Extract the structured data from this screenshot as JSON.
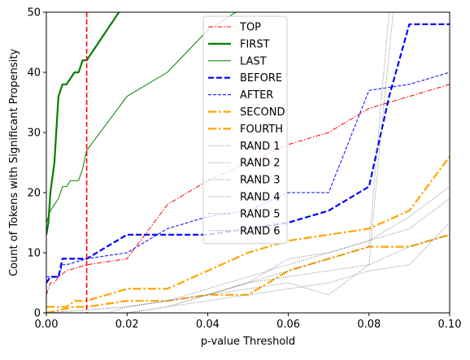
{
  "chart_data": {
    "type": "line",
    "xlabel": "p-value Threshold",
    "ylabel": "Count of Tokens with Significant Propensity",
    "xlim": [
      0.0,
      0.1
    ],
    "ylim": [
      0,
      50
    ],
    "xticks": [
      0.0,
      0.02,
      0.04,
      0.06,
      0.08,
      0.1
    ],
    "xtick_labels": [
      "0.00",
      "0.02",
      "0.04",
      "0.06",
      "0.08",
      "0.10"
    ],
    "yticks": [
      0,
      10,
      20,
      30,
      40,
      50
    ],
    "ytick_labels": [
      "0",
      "10",
      "20",
      "30",
      "40",
      "50"
    ],
    "grid": false,
    "legend_position": "top-center",
    "reference_line": {
      "orientation": "vertical",
      "x": 0.01,
      "color": "#ff0000",
      "style": "dashed"
    },
    "series": [
      {
        "name": "TOP",
        "color": "#ff0000",
        "style": "dashdot-thin",
        "x": [
          0.0,
          0.001,
          0.002,
          0.003,
          0.005,
          0.01,
          0.02,
          0.03,
          0.04,
          0.05,
          0.06,
          0.07,
          0.08,
          0.09,
          0.1
        ],
        "y": [
          3,
          5,
          5,
          6,
          7,
          8,
          9,
          18,
          22,
          25,
          28,
          30,
          34,
          36,
          38
        ]
      },
      {
        "name": "FIRST",
        "color": "#008000",
        "style": "solid-thick",
        "x": [
          0.0,
          0.0005,
          0.001,
          0.002,
          0.003,
          0.004,
          0.005,
          0.006,
          0.007,
          0.008,
          0.009,
          0.01,
          0.015,
          0.018
        ],
        "y": [
          13,
          15,
          20,
          25,
          36,
          38,
          38,
          39,
          40,
          40,
          42,
          42,
          47,
          50
        ]
      },
      {
        "name": "LAST",
        "color": "#008000",
        "style": "solid-thin",
        "x": [
          0.0,
          0.001,
          0.002,
          0.003,
          0.004,
          0.005,
          0.006,
          0.007,
          0.008,
          0.009,
          0.01,
          0.02,
          0.03,
          0.04,
          0.047
        ],
        "y": [
          15,
          17,
          18,
          19,
          21,
          21,
          22,
          22,
          22,
          24,
          27,
          36,
          40,
          47,
          50
        ]
      },
      {
        "name": "BEFORE",
        "color": "#0000ff",
        "style": "dashed-thick",
        "x": [
          0.0,
          0.001,
          0.002,
          0.003,
          0.004,
          0.005,
          0.009,
          0.01,
          0.02,
          0.03,
          0.04,
          0.05,
          0.06,
          0.07,
          0.08,
          0.085,
          0.09,
          0.1
        ],
        "y": [
          5,
          6,
          6,
          6,
          9,
          9,
          9,
          9,
          13,
          13,
          13,
          14,
          15,
          17,
          21,
          36,
          48,
          48
        ]
      },
      {
        "name": "AFTER",
        "color": "#0000ff",
        "style": "dashed-thin",
        "x": [
          0.0,
          0.001,
          0.002,
          0.003,
          0.004,
          0.005,
          0.01,
          0.02,
          0.03,
          0.04,
          0.05,
          0.06,
          0.07,
          0.08,
          0.09,
          0.1
        ],
        "y": [
          6,
          6,
          6,
          6,
          8,
          8,
          9,
          10,
          14,
          16,
          17,
          20,
          20,
          37,
          38,
          40
        ]
      },
      {
        "name": "SECOND",
        "color": "#ffa500",
        "style": "dashdot-thick",
        "x": [
          0.0,
          0.005,
          0.007,
          0.01,
          0.02,
          0.03,
          0.04,
          0.05,
          0.06,
          0.07,
          0.08,
          0.09,
          0.1
        ],
        "y": [
          1,
          1,
          2,
          2,
          4,
          4,
          7,
          10,
          12,
          13,
          14,
          17,
          26
        ]
      },
      {
        "name": "FOURTH",
        "color": "#ffa500",
        "style": "dashdot-thick",
        "x": [
          0.0,
          0.007,
          0.01,
          0.02,
          0.03,
          0.04,
          0.05,
          0.06,
          0.07,
          0.08,
          0.09,
          0.1
        ],
        "y": [
          0,
          1,
          1,
          2,
          2,
          3,
          3,
          7,
          9,
          11,
          11,
          13
        ]
      },
      {
        "name": "RAND 1",
        "color": "#808080",
        "style": "dotted",
        "x": [
          0.0,
          0.015,
          0.02,
          0.03,
          0.04,
          0.05,
          0.06,
          0.07,
          0.08,
          0.09,
          0.1
        ],
        "y": [
          0,
          0,
          1,
          2,
          4,
          6,
          8,
          10,
          12,
          14,
          19
        ]
      },
      {
        "name": "RAND 2",
        "color": "#808080",
        "style": "dotted",
        "x": [
          0.0,
          0.02,
          0.03,
          0.04,
          0.05,
          0.06,
          0.07,
          0.08,
          0.09,
          0.1
        ],
        "y": [
          0,
          1,
          2,
          3,
          5,
          9,
          10,
          12,
          16,
          21
        ]
      },
      {
        "name": "RAND 3",
        "color": "#808080",
        "style": "dotted",
        "x": [
          0.0,
          0.02,
          0.03,
          0.04,
          0.05,
          0.06,
          0.07,
          0.08,
          0.083,
          0.086
        ],
        "y": [
          0,
          0,
          1,
          3,
          5,
          6,
          7,
          8,
          30,
          50
        ]
      },
      {
        "name": "RAND 4",
        "color": "#808080",
        "style": "dotted",
        "x": [
          0.0,
          0.02,
          0.03,
          0.04,
          0.05,
          0.06,
          0.07,
          0.08,
          0.09,
          0.1
        ],
        "y": [
          0,
          0,
          1,
          2,
          3,
          4,
          5,
          7,
          8,
          15
        ]
      },
      {
        "name": "RAND 5",
        "color": "#808080",
        "style": "dotted",
        "x": [
          0.0,
          0.02,
          0.03,
          0.04,
          0.05,
          0.06,
          0.07,
          0.08,
          0.083,
          0.085
        ],
        "y": [
          0,
          1,
          2,
          3,
          5,
          7,
          9,
          11,
          35,
          50
        ]
      },
      {
        "name": "RAND 6",
        "color": "#808080",
        "style": "dotted",
        "x": [
          0.0,
          0.02,
          0.03,
          0.04,
          0.05,
          0.06,
          0.07,
          0.08,
          0.09,
          0.1
        ],
        "y": [
          0,
          0,
          1,
          3,
          4,
          5,
          3,
          8,
          11,
          13
        ]
      }
    ]
  }
}
